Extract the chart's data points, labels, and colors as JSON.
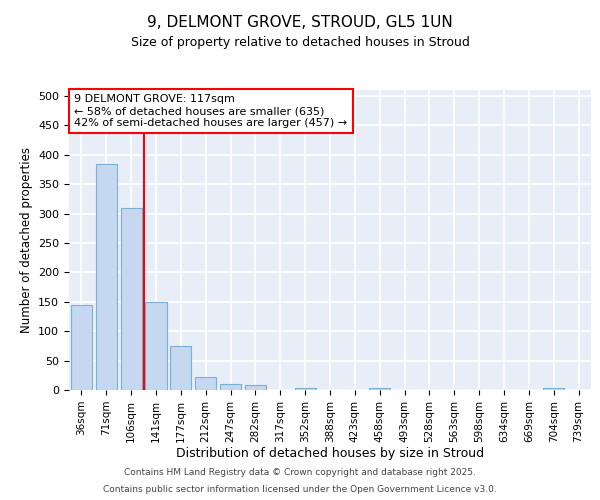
{
  "title": "9, DELMONT GROVE, STROUD, GL5 1UN",
  "subtitle": "Size of property relative to detached houses in Stroud",
  "xlabel": "Distribution of detached houses by size in Stroud",
  "ylabel": "Number of detached properties",
  "bin_labels": [
    "36sqm",
    "71sqm",
    "106sqm",
    "141sqm",
    "177sqm",
    "212sqm",
    "247sqm",
    "282sqm",
    "317sqm",
    "352sqm",
    "388sqm",
    "423sqm",
    "458sqm",
    "493sqm",
    "528sqm",
    "563sqm",
    "598sqm",
    "634sqm",
    "669sqm",
    "704sqm",
    "739sqm"
  ],
  "bar_values": [
    145,
    385,
    310,
    150,
    75,
    22,
    10,
    8,
    0,
    3,
    0,
    0,
    3,
    0,
    0,
    0,
    0,
    0,
    0,
    3,
    0
  ],
  "bar_color": "#c5d8f0",
  "bar_edge_color": "#7bafd4",
  "annotation_box_text": "9 DELMONT GROVE: 117sqm\n← 58% of detached houses are smaller (635)\n42% of semi-detached houses are larger (457) →",
  "red_line_x": 2.5,
  "annotation_box_color": "white",
  "annotation_box_edge_color": "red",
  "red_line_color": "red",
  "background_color": "#ffffff",
  "grid_color": "#d0d8f0",
  "ylim": [
    0,
    510
  ],
  "yticks": [
    0,
    50,
    100,
    150,
    200,
    250,
    300,
    350,
    400,
    450,
    500
  ],
  "footer_line1": "Contains HM Land Registry data © Crown copyright and database right 2025.",
  "footer_line2": "Contains public sector information licensed under the Open Government Licence v3.0."
}
